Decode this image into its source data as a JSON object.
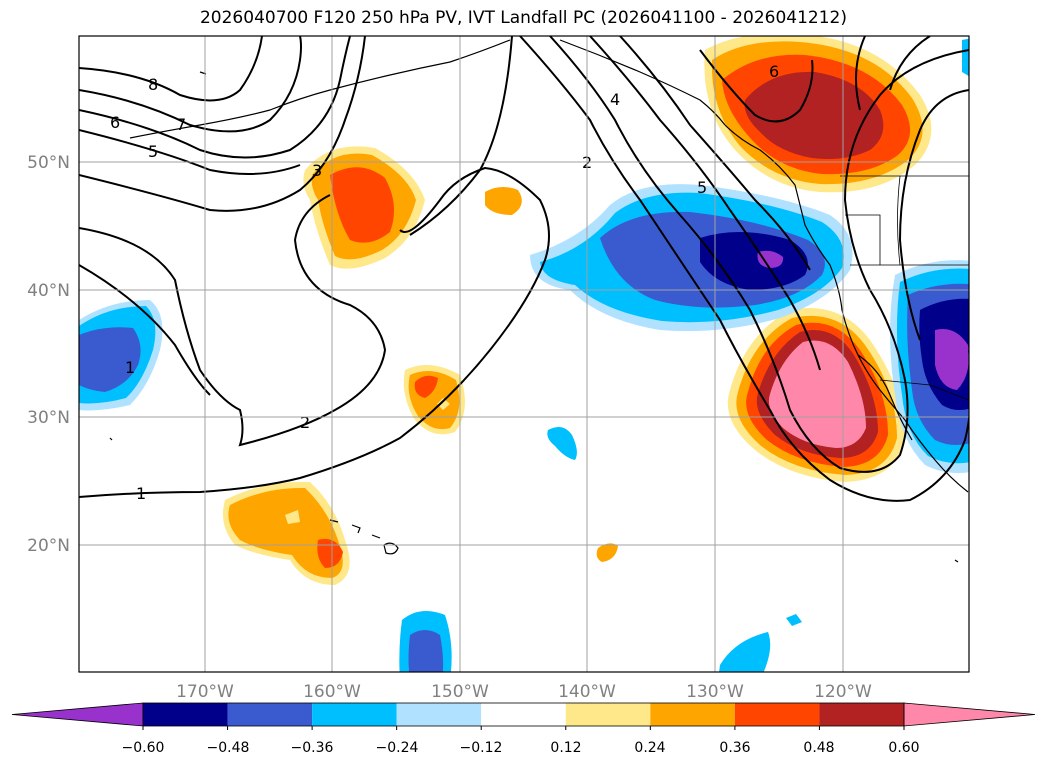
{
  "title": "2026040700 F120 250 hPa PV, IVT Landfall PC (2026041100 - 2026041212)",
  "lat_labels": [
    "50°N",
    "40°N",
    "30°N",
    "20°N"
  ],
  "lon_labels": [
    "170°W",
    "160°W",
    "150°W",
    "140°W",
    "130°W",
    "120°W"
  ],
  "colorbar": {
    "ticks": [
      "−0.60",
      "−0.48",
      "−0.36",
      "−0.24",
      "−0.12",
      "0.12",
      "0.24",
      "0.36",
      "0.48",
      "0.60"
    ],
    "colors": [
      "#9932cc",
      "#00008b",
      "#3a5bd0",
      "#00bfff",
      "#b0e2ff",
      "#ffffff",
      "#ffe88a",
      "#ffa500",
      "#ff4500",
      "#b22222",
      "#ff88aa"
    ]
  },
  "contour_labels": [
    "8",
    "7",
    "6",
    "5",
    "3",
    "2",
    "1",
    "1",
    "2",
    "4",
    "5",
    "6"
  ]
}
